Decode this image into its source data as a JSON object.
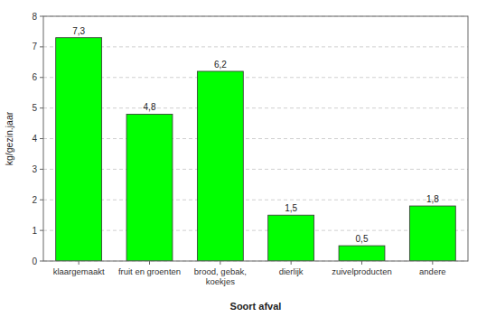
{
  "chart_data": {
    "type": "bar",
    "categories": [
      "klaargemaakt",
      "fruit en groenten",
      "brood, gebak,\nkoekjes",
      "dierlijk",
      "zuivelproducten",
      "andere"
    ],
    "values": [
      7.3,
      4.8,
      6.2,
      1.5,
      0.5,
      1.8
    ],
    "value_labels": [
      "7,3",
      "4,8",
      "6,2",
      "1,5",
      "0,5",
      "1,8"
    ],
    "color": "#00ff00",
    "xlabel": "Soort afval",
    "ylabel": "kg/gezin.jaar",
    "ylim": [
      0,
      8
    ],
    "yticks": [
      0,
      1,
      2,
      3,
      4,
      5,
      6,
      7,
      8
    ],
    "grid": true,
    "data_labels": true
  }
}
